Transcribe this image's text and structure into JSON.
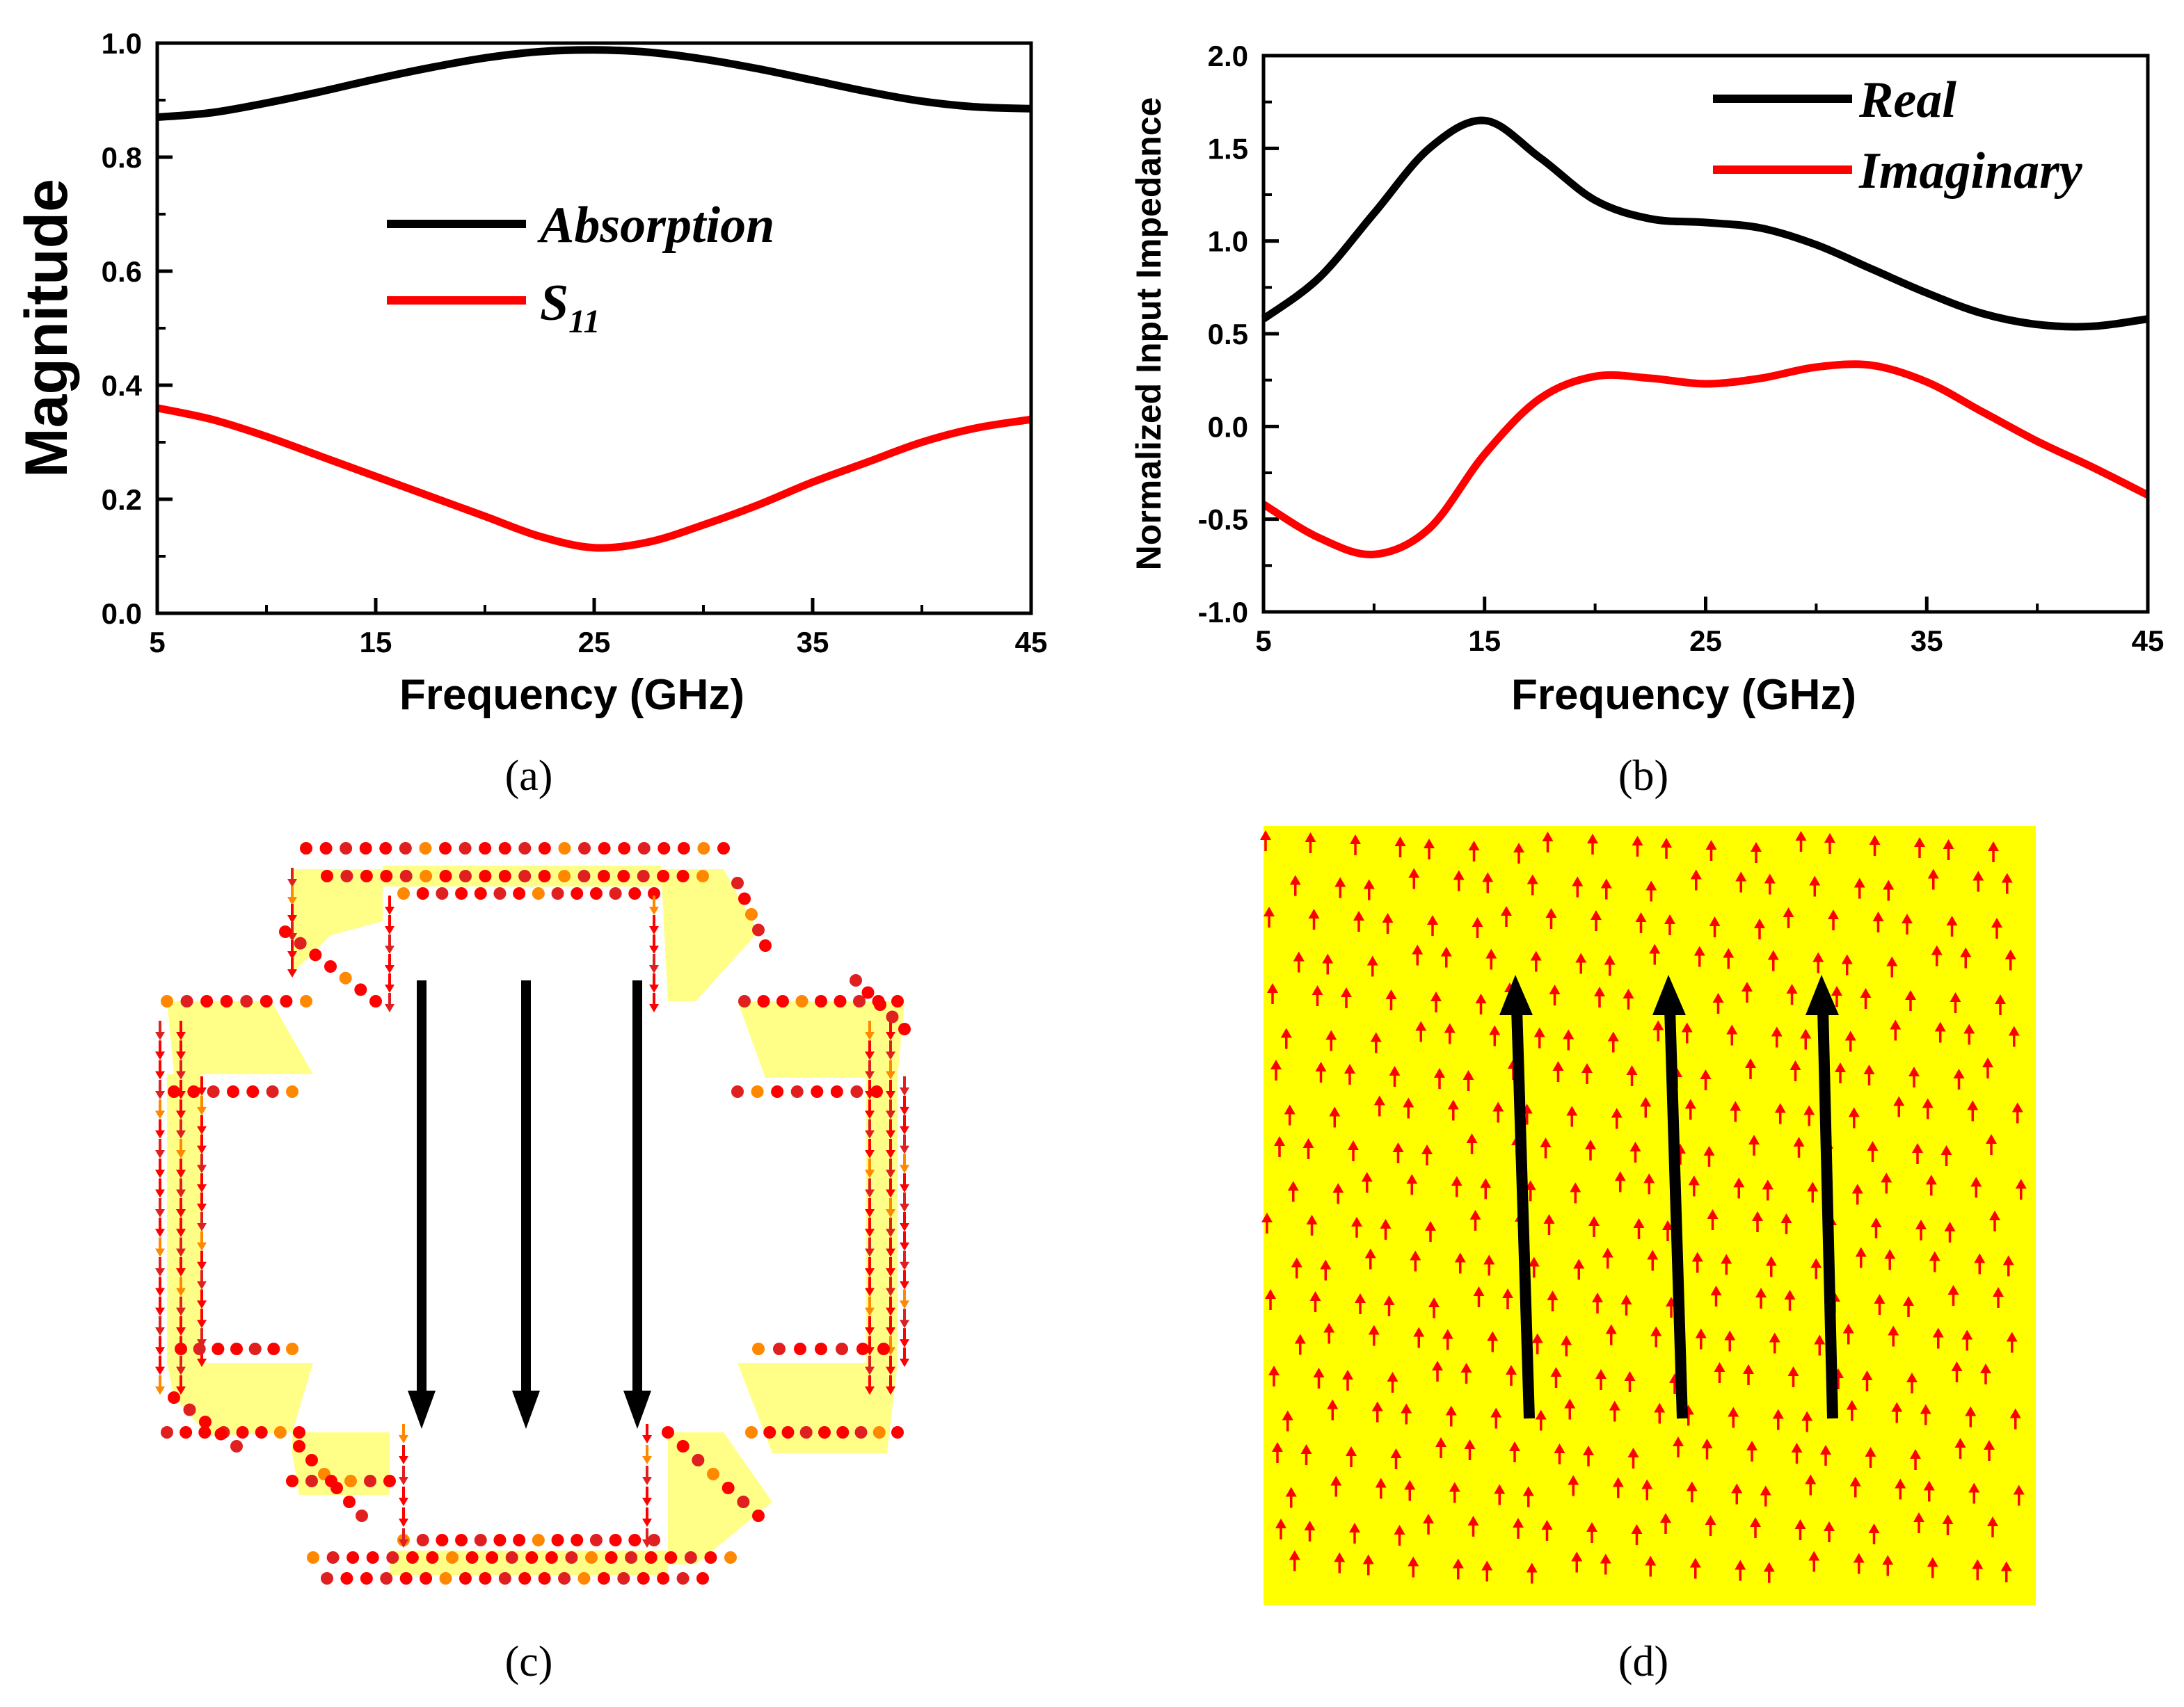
{
  "chart_data": [
    {
      "panel": "a",
      "type": "line",
      "caption": "(a)",
      "xlabel": "Frequency (GHz)",
      "ylabel": "Magnitude",
      "xlim": [
        5,
        45
      ],
      "ylim": [
        0.0,
        1.0
      ],
      "xticks": [
        "5",
        "15",
        "25",
        "35",
        "45"
      ],
      "yticks": [
        "0.0",
        "0.2",
        "0.4",
        "0.6",
        "0.8",
        "1.0"
      ],
      "legend_position": "center-top",
      "x": [
        5,
        7.5,
        10,
        12.5,
        15,
        17.5,
        20,
        22.5,
        25,
        27.5,
        30,
        32.5,
        35,
        37.5,
        40,
        42.5,
        45
      ],
      "series": [
        {
          "name": "Absorption",
          "color": "#000000",
          "values": [
            0.87,
            0.878,
            0.895,
            0.915,
            0.937,
            0.957,
            0.974,
            0.985,
            0.988,
            0.984,
            0.972,
            0.955,
            0.935,
            0.915,
            0.898,
            0.888,
            0.885
          ]
        },
        {
          "name": "S",
          "sub": "11",
          "color": "#ff0000",
          "values": [
            0.36,
            0.34,
            0.31,
            0.275,
            0.24,
            0.205,
            0.17,
            0.135,
            0.115,
            0.125,
            0.155,
            0.19,
            0.23,
            0.265,
            0.3,
            0.325,
            0.34
          ]
        }
      ]
    },
    {
      "panel": "b",
      "type": "line",
      "caption": "(b)",
      "xlabel": "Frequency (GHz)",
      "ylabel": "Normalized Input Impedance",
      "xlim": [
        5,
        45
      ],
      "ylim": [
        -1.0,
        2.0
      ],
      "xticks": [
        "5",
        "15",
        "25",
        "35",
        "45"
      ],
      "yticks": [
        "-1.0",
        "-0.5",
        "0.0",
        "0.5",
        "1.0",
        "1.5",
        "2.0"
      ],
      "legend_position": "top-right",
      "x": [
        5,
        7.5,
        10,
        12.5,
        15,
        17.5,
        20,
        22.5,
        25,
        27.5,
        30,
        32.5,
        35,
        37.5,
        40,
        42.5,
        45
      ],
      "series": [
        {
          "name": "Real",
          "color": "#000000",
          "values": [
            0.58,
            0.8,
            1.15,
            1.5,
            1.65,
            1.45,
            1.22,
            1.12,
            1.1,
            1.07,
            0.98,
            0.85,
            0.72,
            0.61,
            0.55,
            0.54,
            0.58
          ]
        },
        {
          "name": "Imaginary",
          "color": "#ff0000",
          "values": [
            -0.42,
            -0.6,
            -0.69,
            -0.55,
            -0.15,
            0.15,
            0.27,
            0.26,
            0.23,
            0.26,
            0.32,
            0.33,
            0.24,
            0.08,
            -0.08,
            -0.22,
            -0.37
          ]
        }
      ]
    }
  ],
  "figures": {
    "c": {
      "caption": "(c)",
      "arrow_direction": "down",
      "arrow_count": 3
    },
    "d": {
      "caption": "(d)",
      "arrow_direction": "up",
      "arrow_count": 3,
      "background": "#ffff00"
    }
  },
  "colors": {
    "black": "#000000",
    "red": "#ff0000",
    "yellow": "#ffff00",
    "pale_yellow": "#ffff88",
    "orange": "#ff9900"
  }
}
